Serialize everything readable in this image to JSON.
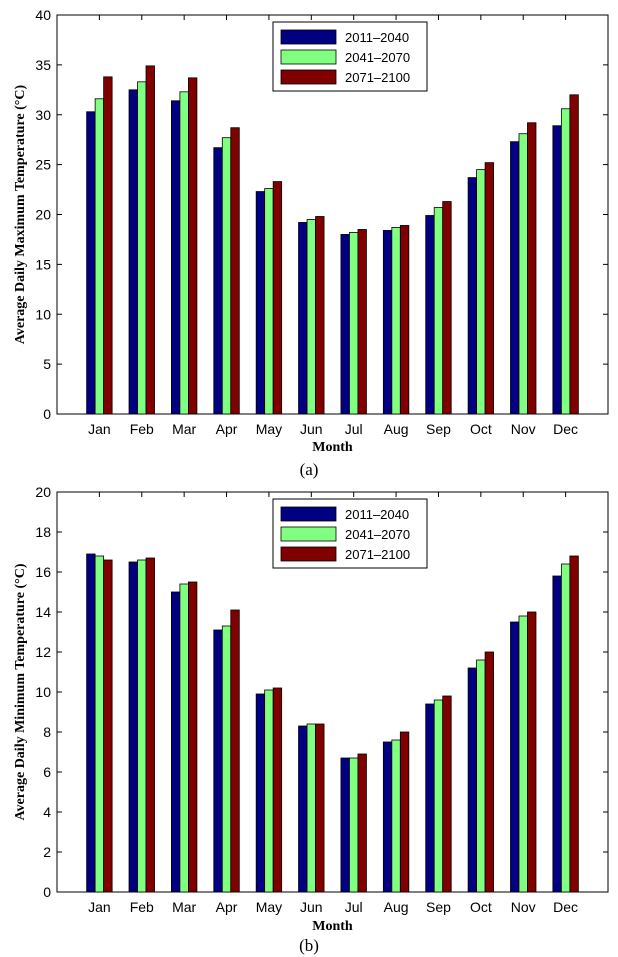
{
  "chart_data": [
    {
      "type": "bar",
      "caption": "(a)",
      "xlabel": "Month",
      "ylabel": "Average Daily Maximum Temperature (°C)",
      "ylim": [
        0,
        40
      ],
      "yticks": [
        0,
        5,
        10,
        15,
        20,
        25,
        30,
        35,
        40
      ],
      "categories": [
        "Jan",
        "Feb",
        "Mar",
        "Apr",
        "May",
        "Jun",
        "Jul",
        "Aug",
        "Sep",
        "Oct",
        "Nov",
        "Dec"
      ],
      "legend_position": "top-center",
      "series": [
        {
          "name": "2011–2040",
          "color": "#000080",
          "values": [
            30.3,
            32.5,
            31.4,
            26.7,
            22.3,
            19.2,
            18.0,
            18.4,
            19.9,
            23.7,
            27.3,
            28.9
          ]
        },
        {
          "name": "2041–2070",
          "color": "#80ff80",
          "values": [
            31.6,
            33.3,
            32.3,
            27.7,
            22.6,
            19.5,
            18.2,
            18.7,
            20.7,
            24.5,
            28.1,
            30.6
          ]
        },
        {
          "name": "2071–2100",
          "color": "#800000",
          "values": [
            33.8,
            34.9,
            33.7,
            28.7,
            23.3,
            19.8,
            18.5,
            18.9,
            21.3,
            25.2,
            29.2,
            32.0
          ]
        }
      ]
    },
    {
      "type": "bar",
      "caption": "(b)",
      "xlabel": "Month",
      "ylabel": "Average Daily Minimum Temperature (°C)",
      "ylim": [
        0,
        20
      ],
      "yticks": [
        0,
        2,
        4,
        6,
        8,
        10,
        12,
        14,
        16,
        18,
        20
      ],
      "categories": [
        "Jan",
        "Feb",
        "Mar",
        "Apr",
        "May",
        "Jun",
        "Jul",
        "Aug",
        "Sep",
        "Oct",
        "Nov",
        "Dec"
      ],
      "legend_position": "top-center",
      "series": [
        {
          "name": "2011–2040",
          "color": "#000080",
          "values": [
            16.9,
            16.5,
            15.0,
            13.1,
            9.9,
            8.3,
            6.7,
            7.5,
            9.4,
            11.2,
            13.5,
            15.8
          ]
        },
        {
          "name": "2041–2070",
          "color": "#80ff80",
          "values": [
            16.8,
            16.6,
            15.4,
            13.3,
            10.1,
            8.4,
            6.7,
            7.6,
            9.6,
            11.6,
            13.8,
            16.4
          ]
        },
        {
          "name": "2071–2100",
          "color": "#800000",
          "values": [
            16.6,
            16.7,
            15.5,
            14.1,
            10.2,
            8.4,
            6.9,
            8.0,
            9.8,
            12.0,
            14.0,
            16.8
          ]
        }
      ]
    }
  ]
}
